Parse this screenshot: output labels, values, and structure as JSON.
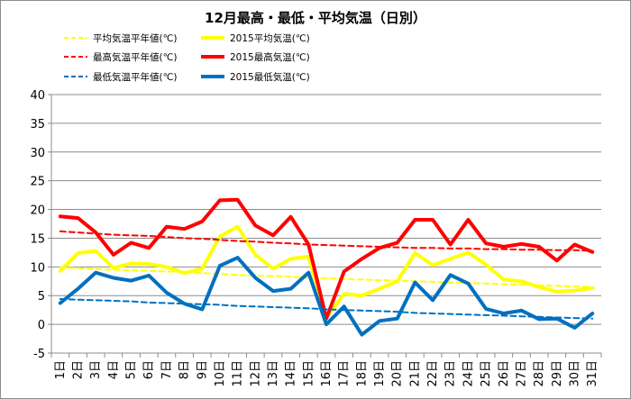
{
  "chart_data": {
    "type": "line",
    "title": "12月最高・最低・平均気温（日別）",
    "xlabel": "",
    "ylabel": "",
    "ylim": [
      -5,
      40
    ],
    "yticks": [
      -5,
      0,
      5,
      10,
      15,
      20,
      25,
      30,
      35,
      40
    ],
    "grid": true,
    "legend_position": "top",
    "x": [
      "1日",
      "2日",
      "3日",
      "4日",
      "5日",
      "6日",
      "7日",
      "8日",
      "9日",
      "10日",
      "11日",
      "12日",
      "13日",
      "14日",
      "15日",
      "16日",
      "17日",
      "18日",
      "19日",
      "20日",
      "21日",
      "22日",
      "23日",
      "24日",
      "25日",
      "26日",
      "27日",
      "28日",
      "29日",
      "30日",
      "31日"
    ],
    "series": [
      {
        "name": "平均気温平年値(℃)",
        "color": "#ffff00",
        "style": "dashed",
        "width": 2,
        "values": [
          9.9,
          9.8,
          9.6,
          9.5,
          9.4,
          9.3,
          9.2,
          9.1,
          8.9,
          8.8,
          8.6,
          8.5,
          8.4,
          8.3,
          8.1,
          8.0,
          7.9,
          7.8,
          7.7,
          7.6,
          7.5,
          7.4,
          7.3,
          7.2,
          7.1,
          7.0,
          6.9,
          6.8,
          6.7,
          6.6,
          6.5
        ]
      },
      {
        "name": "2015平均気温(℃)",
        "color": "#ffff00",
        "style": "solid",
        "width": 4,
        "values": [
          9.3,
          12.4,
          12.8,
          9.8,
          10.6,
          10.5,
          10.0,
          8.9,
          9.7,
          15.3,
          17.0,
          12.1,
          9.7,
          11.4,
          11.8,
          1.2,
          5.3,
          5.0,
          6.2,
          7.5,
          12.4,
          10.3,
          11.4,
          12.5,
          10.4,
          7.8,
          7.5,
          6.5,
          5.7,
          5.9,
          6.3
        ]
      },
      {
        "name": "最高気温平年値(℃)",
        "color": "#ff0000",
        "style": "dashed",
        "width": 2,
        "values": [
          16.2,
          16.0,
          15.8,
          15.6,
          15.5,
          15.4,
          15.2,
          15.0,
          14.9,
          14.7,
          14.5,
          14.4,
          14.2,
          14.1,
          13.9,
          13.8,
          13.7,
          13.6,
          13.5,
          13.4,
          13.3,
          13.3,
          13.2,
          13.2,
          13.1,
          13.1,
          13.0,
          13.0,
          12.9,
          12.9,
          12.8
        ]
      },
      {
        "name": "2015最高気温(℃)",
        "color": "#ff0000",
        "style": "solid",
        "width": 4,
        "values": [
          18.8,
          18.5,
          16.0,
          12.1,
          14.2,
          13.3,
          17.0,
          16.6,
          17.9,
          21.6,
          21.7,
          17.2,
          15.5,
          18.7,
          13.9,
          1.0,
          9.2,
          11.4,
          13.3,
          14.2,
          18.2,
          18.2,
          13.9,
          18.2,
          14.1,
          13.5,
          14.0,
          13.5,
          11.1,
          13.9,
          12.6
        ]
      },
      {
        "name": "最低気温平年値(℃)",
        "color": "#0070c0",
        "style": "dashed",
        "width": 2,
        "values": [
          4.4,
          4.3,
          4.2,
          4.1,
          4.0,
          3.8,
          3.7,
          3.6,
          3.5,
          3.4,
          3.2,
          3.1,
          3.0,
          2.9,
          2.8,
          2.6,
          2.5,
          2.4,
          2.3,
          2.2,
          2.0,
          1.9,
          1.8,
          1.7,
          1.6,
          1.5,
          1.4,
          1.3,
          1.2,
          1.1,
          1.0
        ]
      },
      {
        "name": "2015最低気温(℃)",
        "color": "#0070c0",
        "style": "solid",
        "width": 4,
        "values": [
          3.7,
          6.2,
          9.0,
          8.1,
          7.6,
          8.5,
          5.5,
          3.6,
          2.6,
          10.2,
          11.6,
          8.1,
          5.8,
          6.2,
          9.0,
          0.0,
          3.1,
          -1.8,
          0.6,
          1.0,
          7.3,
          4.2,
          8.6,
          7.1,
          2.7,
          1.9,
          2.4,
          0.9,
          1.0,
          -0.6,
          1.9
        ]
      }
    ]
  }
}
